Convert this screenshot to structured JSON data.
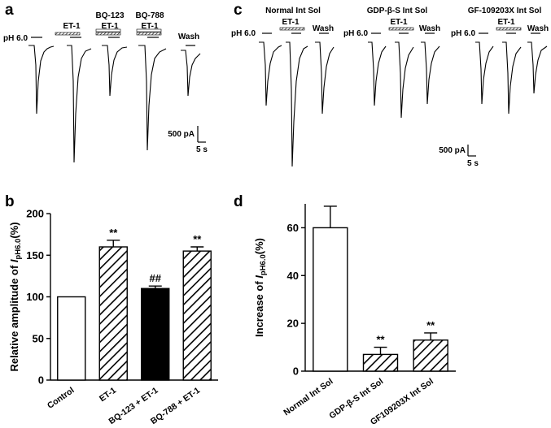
{
  "panels": {
    "a": "a",
    "b": "b",
    "c": "c",
    "d": "d"
  },
  "panel_a": {
    "ph_label": "pH 6.0",
    "conditions": [
      {
        "top": "",
        "label": "ET-1"
      },
      {
        "top": "BQ-123",
        "label": "ET-1"
      },
      {
        "top": "BQ-788",
        "label": "ET-1"
      },
      {
        "top": "",
        "label": "Wash"
      }
    ],
    "scale_current": "500 pA",
    "scale_time": "5 s"
  },
  "panel_c": {
    "groups": [
      {
        "title": "Normal Int Sol",
        "ph_label": "pH 6.0",
        "et_label": "ET-1",
        "wash_label": "Wash"
      },
      {
        "title": "GDP-β-S Int Sol",
        "ph_label": "pH 6.0",
        "et_label": "ET-1",
        "wash_label": "Wash"
      },
      {
        "title": "GF-109203X Int Sol",
        "ph_label": "pH 6.0",
        "et_label": "ET-1",
        "wash_label": "Wash"
      }
    ],
    "scale_current": "500 pA",
    "scale_time": "5 s"
  },
  "chart_data": [
    {
      "type": "bar",
      "panel": "b",
      "title": "",
      "xlabel": "",
      "ylabel_main": "Relative amplitude of ",
      "ylabel_italic": "I",
      "ylabel_sub": "pH6.0",
      "ylabel_end": "(%)",
      "ylim": [
        0,
        200
      ],
      "yticks": [
        "0",
        "50",
        "100",
        "150",
        "200"
      ],
      "categories": [
        "Control",
        "ET-1",
        "BQ-123 + ET-1",
        "BQ-788 + ET-1"
      ],
      "values": [
        100,
        160,
        110,
        155
      ],
      "errors": [
        0,
        8,
        3,
        5
      ],
      "fills": [
        "white",
        "hatch",
        "black",
        "hatch"
      ],
      "annotations": [
        "",
        "**",
        "##",
        "**"
      ]
    },
    {
      "type": "bar",
      "panel": "d",
      "title": "",
      "xlabel": "",
      "ylabel_main": "Increase of ",
      "ylabel_italic": "I",
      "ylabel_sub": "pH6.0",
      "ylabel_end": "(%)",
      "ylim": [
        0,
        70
      ],
      "yticks": [
        "0",
        "20",
        "40",
        "60"
      ],
      "categories": [
        "Normal Int Sol",
        "GDP-β-S Int Sol",
        "GF109203X Int Sol"
      ],
      "values": [
        60,
        7,
        13
      ],
      "errors": [
        9,
        3,
        3
      ],
      "fills": [
        "white",
        "hatch",
        "hatch"
      ],
      "annotations": [
        "",
        "**",
        "**"
      ]
    }
  ]
}
